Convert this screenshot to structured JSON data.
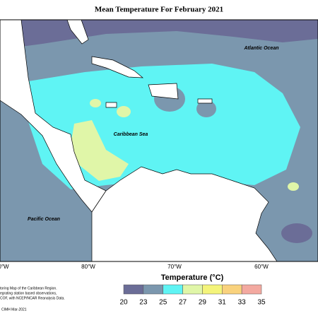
{
  "title": "Mean Temperature For February 2021",
  "ocean_labels": {
    "atlantic": "Atlantic Ocean",
    "caribbean": "Caribbean Sea",
    "pacific": "Pacific Ocean"
  },
  "longitudes": [
    "0°W",
    "80°W",
    "70°W",
    "60°W"
  ],
  "legend": {
    "title": "Temperature (°C)",
    "ticks": [
      20,
      23,
      25,
      27,
      29,
      31,
      33,
      35
    ],
    "colors": [
      "#6b6d97",
      "#7b97ae",
      "#5ff4f4",
      "#e0f6a8",
      "#f4f47a",
      "#f9d27d",
      "#f3a9a0"
    ]
  },
  "footnote": [
    "toring Map of the Caribbean Region.",
    "egrating station based observations,",
    "COF, with NCEP/NCAR Reanalysis Data."
  ],
  "credit": "CIMH Mar-2021"
}
